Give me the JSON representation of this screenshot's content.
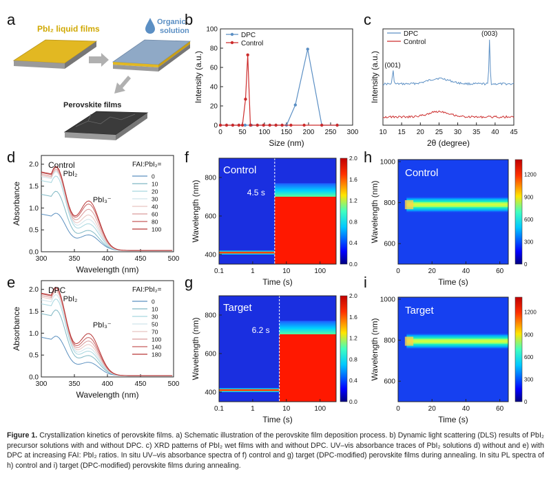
{
  "figure": {
    "panel_letters": [
      "a",
      "b",
      "c",
      "d",
      "e",
      "f",
      "g",
      "h",
      "i"
    ],
    "schematic": {
      "pbi2_label": "PbI₂ liquid films",
      "organic_label_1": "Organic",
      "organic_label_2": "solution",
      "perovskite_label": "Perovskite films",
      "colors": {
        "gold": "#e2b822",
        "blue_film": "#8fa9c6",
        "perovskite": "#3b3b3b",
        "label_gold": "#d0a800",
        "label_blue": "#5b8fc4"
      }
    },
    "uvvis_fai": "FAI:PbI₂=",
    "map_labels": {
      "f": "Control",
      "g": "Target",
      "h": "Control",
      "i": "Target"
    },
    "map_times": {
      "f": "4.5 s",
      "g": "6.2 s"
    },
    "time_axis": "Time (s)",
    "wavelength_axis": "Wavelength (nm)"
  },
  "chart_data": [
    {
      "panel": "b",
      "type": "line",
      "xlabel": "Size (nm)",
      "ylabel": "Intensity (a.u.)",
      "xlim": [
        0,
        300
      ],
      "ylim": [
        0,
        100
      ],
      "xticks": [
        "0",
        "50",
        "100",
        "150",
        "200",
        "250",
        "300"
      ],
      "yticks": [
        "0",
        "20",
        "40",
        "60",
        "80",
        "100"
      ],
      "series": [
        {
          "name": "DPC",
          "color": "#5b8fc4",
          "x": [
            0,
            14,
            28,
            42,
            56,
            70,
            84,
            98,
            112,
            126,
            140,
            150,
            170,
            198,
            230,
            265
          ],
          "y": [
            0,
            0,
            0,
            0,
            0,
            0,
            0,
            0,
            0,
            0,
            0,
            0,
            21,
            79,
            0,
            0
          ]
        },
        {
          "name": "Control",
          "color": "#cc2b2b",
          "x": [
            0,
            14,
            28,
            42,
            50,
            57,
            62,
            68,
            84,
            98,
            112,
            126,
            140,
            160,
            190,
            230,
            265
          ],
          "y": [
            0,
            0,
            0,
            0,
            0,
            27,
            73,
            0,
            0,
            0,
            0,
            0,
            0,
            0,
            0,
            0,
            0
          ]
        }
      ]
    },
    {
      "panel": "c",
      "type": "line",
      "xlabel": "2θ (degree)",
      "ylabel": "Intensity (a.u.)",
      "xlim": [
        10,
        45
      ],
      "xticks": [
        "10",
        "15",
        "20",
        "25",
        "30",
        "35",
        "40",
        "45"
      ],
      "annotations": [
        "(001)",
        "(003)"
      ],
      "series": [
        {
          "name": "DPC",
          "color": "#5b8fc4",
          "peaks_deg": [
            12.7,
            38.5
          ]
        },
        {
          "name": "Control",
          "color": "#cc2b2b"
        }
      ]
    },
    {
      "panel": "d",
      "type": "line",
      "title": "Control",
      "xlabel": "Wavelength (nm)",
      "ylabel": "Absorbance",
      "xlim": [
        300,
        500
      ],
      "ylim": [
        0,
        2.2
      ],
      "xticks": [
        "300",
        "350",
        "400",
        "450",
        "500"
      ],
      "yticks": [
        "0.0",
        "0.5",
        "1.0",
        "1.5",
        "2.0"
      ],
      "annotations": [
        "PbI₂",
        "PbI₃⁻"
      ],
      "series": [
        {
          "name": "0",
          "color": "#5a8fbf",
          "a320": 0.85,
          "a370": 0.35
        },
        {
          "name": "10",
          "color": "#7fb8c4",
          "a320": 1.35,
          "a370": 0.45
        },
        {
          "name": "20",
          "color": "#a6d6df",
          "a320": 1.7,
          "a370": 0.6
        },
        {
          "name": "30",
          "color": "#cfe3ea",
          "a320": 1.8,
          "a370": 0.7
        },
        {
          "name": "40",
          "color": "#e8c4c0",
          "a320": 1.83,
          "a370": 0.8
        },
        {
          "name": "60",
          "color": "#d99a9a",
          "a320": 1.86,
          "a370": 0.93
        },
        {
          "name": "80",
          "color": "#c55b5b",
          "a320": 1.9,
          "a370": 1.05
        },
        {
          "name": "100",
          "color": "#b73434",
          "a320": 1.92,
          "a370": 1.12
        }
      ]
    },
    {
      "panel": "e",
      "type": "line",
      "title": "DPC",
      "xlabel": "Wavelength (nm)",
      "ylabel": "Absorbance",
      "xlim": [
        300,
        500
      ],
      "ylim": [
        0,
        2.2
      ],
      "xticks": [
        "300",
        "350",
        "400",
        "450",
        "500"
      ],
      "yticks": [
        "0.0",
        "0.5",
        "1.0",
        "1.5",
        "2.0"
      ],
      "annotations": [
        "PbI₂",
        "PbI₃⁻"
      ],
      "series": [
        {
          "name": "0",
          "color": "#5a8fbf",
          "a320": 0.9,
          "a370": 0.3
        },
        {
          "name": "10",
          "color": "#7fb8c4",
          "a320": 1.5,
          "a370": 0.45
        },
        {
          "name": "30",
          "color": "#a6d6df",
          "a320": 1.75,
          "a370": 0.55
        },
        {
          "name": "50",
          "color": "#cfe3ea",
          "a320": 1.85,
          "a370": 0.62
        },
        {
          "name": "70",
          "color": "#e8c4c0",
          "a320": 1.92,
          "a370": 0.7
        },
        {
          "name": "100",
          "color": "#d99a9a",
          "a320": 1.96,
          "a370": 0.78
        },
        {
          "name": "140",
          "color": "#c55b5b",
          "a320": 2.0,
          "a370": 0.86
        },
        {
          "name": "180",
          "color": "#b73434",
          "a320": 2.02,
          "a370": 0.95
        }
      ]
    },
    {
      "panel": "f",
      "type": "heatmap",
      "xlabel": "Time (s)",
      "ylabel": "Wavelength (nm)",
      "xscale": "log",
      "xlim": [
        0.1,
        300
      ],
      "ylim": [
        350,
        900
      ],
      "xticks": [
        "0.1",
        "1",
        "10",
        "100"
      ],
      "yticks": [
        "400",
        "600",
        "800"
      ],
      "colorbar": {
        "min": 0,
        "max": 2.0,
        "ticks": [
          "0.0",
          "0.4",
          "0.8",
          "1.2",
          "1.6",
          "2.0"
        ]
      },
      "transition_time_s": 4.5
    },
    {
      "panel": "g",
      "type": "heatmap",
      "xlabel": "Time (s)",
      "ylabel": "Wavelength (nm)",
      "xscale": "log",
      "xlim": [
        0.1,
        300
      ],
      "ylim": [
        350,
        900
      ],
      "xticks": [
        "0.1",
        "1",
        "10",
        "100"
      ],
      "yticks": [
        "400",
        "600",
        "800"
      ],
      "colorbar": {
        "min": 0,
        "max": 2.0,
        "ticks": [
          "0.0",
          "0.4",
          "0.8",
          "1.2",
          "1.6",
          "2.0"
        ]
      },
      "transition_time_s": 6.2
    },
    {
      "panel": "h",
      "type": "heatmap",
      "xlabel": "Time (s)",
      "ylabel": "Wavelength (nm)",
      "xlim": [
        0,
        65
      ],
      "ylim": [
        500,
        1010
      ],
      "xticks": [
        "0",
        "20",
        "40",
        "60"
      ],
      "yticks": [
        "600",
        "800",
        "1000"
      ],
      "colorbar": {
        "min": 0,
        "max": 1400,
        "ticks": [
          "0",
          "300",
          "600",
          "900",
          "1200"
        ]
      },
      "band_center_nm": 790
    },
    {
      "panel": "i",
      "type": "heatmap",
      "xlabel": "Time (s)",
      "ylabel": "Wavelength (nm)",
      "xlim": [
        0,
        65
      ],
      "ylim": [
        500,
        1010
      ],
      "xticks": [
        "0",
        "20",
        "40",
        "60"
      ],
      "yticks": [
        "600",
        "800",
        "1000"
      ],
      "colorbar": {
        "min": 0,
        "max": 1400,
        "ticks": [
          "0",
          "300",
          "600",
          "900",
          "1200"
        ]
      },
      "band_center_nm": 795
    }
  ],
  "caption": {
    "label": "Figure 1.",
    "text": "Crystallization kinetics of perovskite films. a) Schematic illustration of the perovskite film deposition process. b) Dynamic light scattering (DLS) results of PbI₂ precursor solutions with and without DPC. c) XRD patterns of PbI₂ wet films with and without DPC. UV–vis absorbance traces of PbI₂ solutions d) without and e) with DPC at increasing FAI: PbI₂ ratios. In situ UV–vis absorbance spectra of f) control and g) target (DPC-modified) perovskite films during annealing. In situ PL spectra of h) control and i) target (DPC-modified) perovskite films during annealing."
  }
}
